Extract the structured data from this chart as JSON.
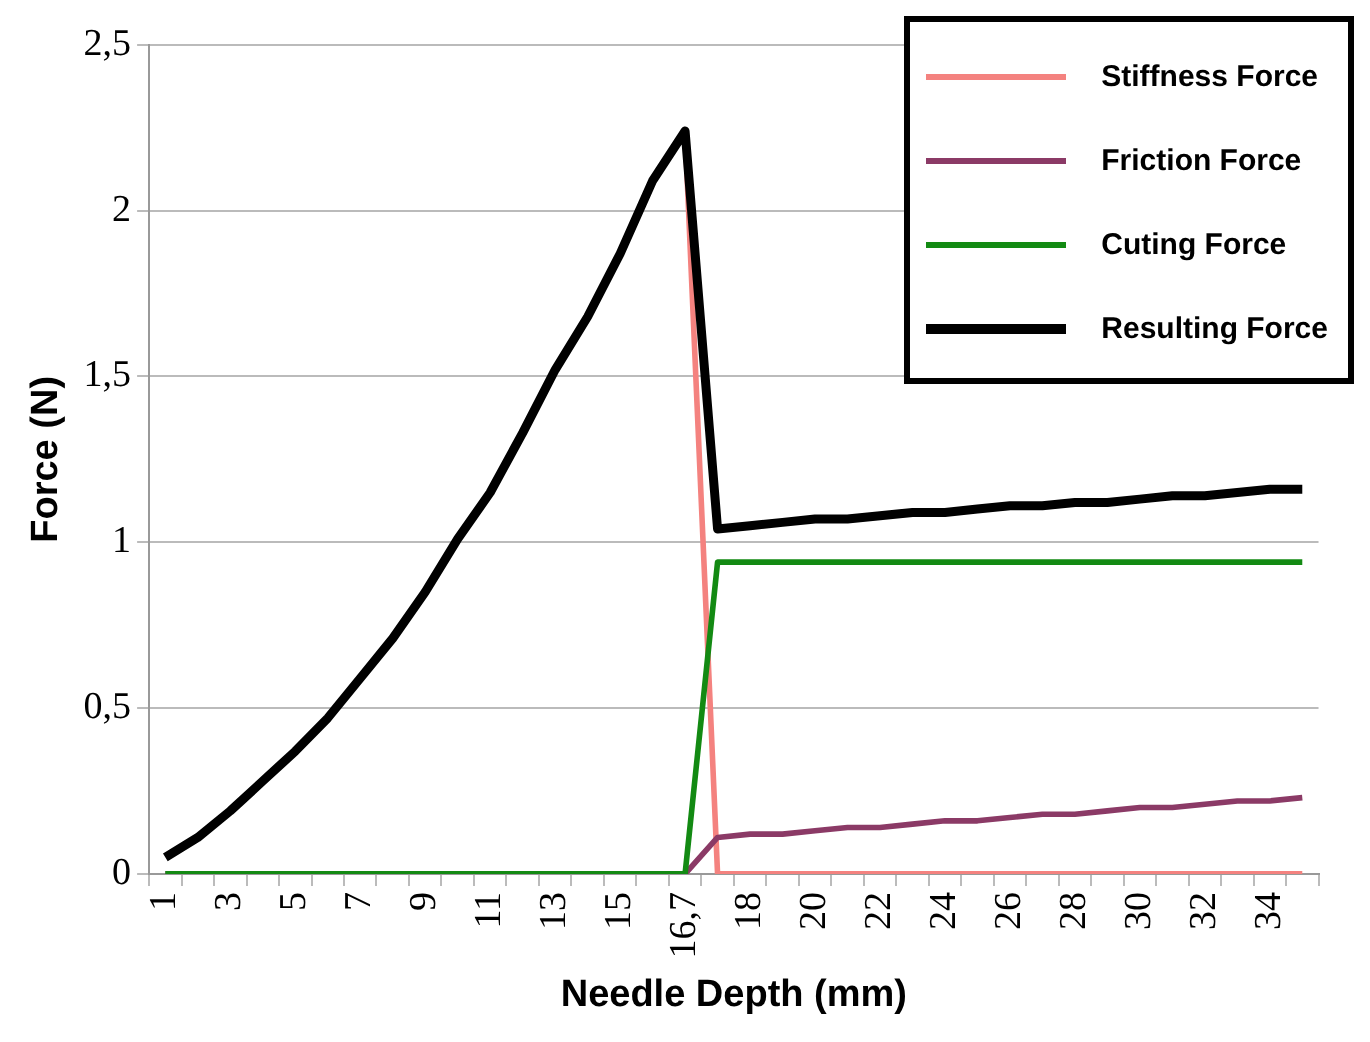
{
  "chart_data": {
    "type": "line",
    "xlabel": "Needle Depth (mm)",
    "ylabel": "Force (N)",
    "categories": [
      "1",
      null,
      "3",
      null,
      "5",
      null,
      "7",
      null,
      "9",
      null,
      "11",
      null,
      "13",
      null,
      "15",
      null,
      "16,7",
      null,
      "18",
      null,
      "20",
      null,
      "22",
      null,
      "24",
      null,
      "26",
      null,
      "28",
      null,
      "30",
      null,
      "32",
      null,
      "34",
      null
    ],
    "series": [
      {
        "name": "Stiffness Force",
        "color": "#f4827f",
        "values": [
          null,
          null,
          null,
          null,
          null,
          null,
          null,
          null,
          null,
          null,
          null,
          null,
          null,
          null,
          null,
          null,
          2.24,
          0,
          0,
          0,
          0,
          0,
          0,
          0,
          0,
          0,
          0,
          0,
          0,
          0,
          0,
          0,
          0,
          0,
          0,
          0
        ]
      },
      {
        "name": "Friction Force",
        "color": "#8b3a66",
        "values": [
          0,
          0,
          0,
          0,
          0,
          0,
          0,
          0,
          0,
          0,
          0,
          0,
          0,
          0,
          0,
          0,
          0,
          0.11,
          0.12,
          0.12,
          0.13,
          0.14,
          0.14,
          0.15,
          0.16,
          0.16,
          0.17,
          0.18,
          0.18,
          0.19,
          0.2,
          0.2,
          0.21,
          0.22,
          0.22,
          0.23
        ]
      },
      {
        "name": "Cuting Force",
        "color": "#138a13",
        "values": [
          0,
          0,
          0,
          0,
          0,
          0,
          0,
          0,
          0,
          0,
          0,
          0,
          0,
          0,
          0,
          0,
          0,
          0.94,
          0.94,
          0.94,
          0.94,
          0.94,
          0.94,
          0.94,
          0.94,
          0.94,
          0.94,
          0.94,
          0.94,
          0.94,
          0.94,
          0.94,
          0.94,
          0.94,
          0.94,
          0.94
        ]
      },
      {
        "name": "Resulting Force",
        "color": "#000000",
        "values": [
          0.05,
          0.11,
          0.19,
          0.28,
          0.37,
          0.47,
          0.59,
          0.71,
          0.85,
          1.01,
          1.15,
          1.33,
          1.52,
          1.68,
          1.87,
          2.09,
          2.24,
          1.04,
          1.05,
          1.06,
          1.07,
          1.07,
          1.08,
          1.09,
          1.09,
          1.1,
          1.11,
          1.11,
          1.12,
          1.12,
          1.13,
          1.14,
          1.14,
          1.15,
          1.16,
          1.16
        ]
      }
    ],
    "ylim": [
      0,
      2.5
    ],
    "yticks": [
      0,
      {
        "value": 0.5,
        "label": "0,5"
      },
      1,
      {
        "value": 1.5,
        "label": "1,5"
      },
      2,
      {
        "value": 2.5,
        "label": "2,5"
      }
    ],
    "grid": "y",
    "legend": "top right",
    "marker": "none",
    "line_style": "solid"
  }
}
